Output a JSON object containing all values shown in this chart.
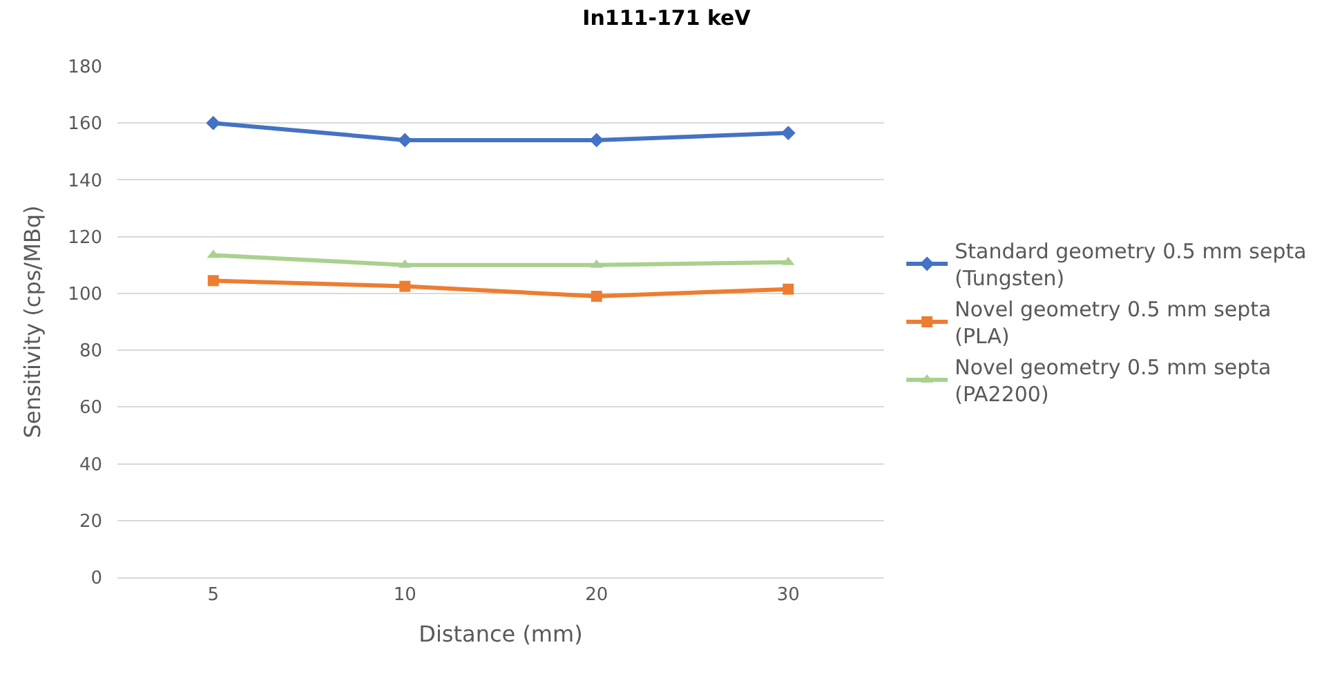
{
  "chart_data": {
    "type": "line",
    "title": "In111-171 keV",
    "xlabel": "Distance (mm)",
    "ylabel": "Sensitivity (cps/MBq)",
    "categories": [
      "5",
      "10",
      "20",
      "30"
    ],
    "series": [
      {
        "name": "Standard geometry 0.5 mm septa (Tungsten)",
        "color": "#4472c4",
        "marker": "diamond",
        "values": [
          160,
          154,
          154,
          156.5
        ]
      },
      {
        "name": "Novel geometry 0.5 mm septa (PLA)",
        "color": "#ed7d31",
        "marker": "square",
        "values": [
          104.5,
          102.5,
          99,
          101.5
        ]
      },
      {
        "name": "Novel geometry 0.5 mm septa (PA2200)",
        "color": "#a9d18e",
        "marker": "triangle",
        "values": [
          113.5,
          110,
          110,
          111
        ]
      }
    ],
    "ylim": [
      0,
      180
    ],
    "yticks": [
      0,
      20,
      40,
      60,
      80,
      100,
      120,
      140,
      160,
      180
    ],
    "grid": "y",
    "legend": "right",
    "line_style": "solid"
  }
}
